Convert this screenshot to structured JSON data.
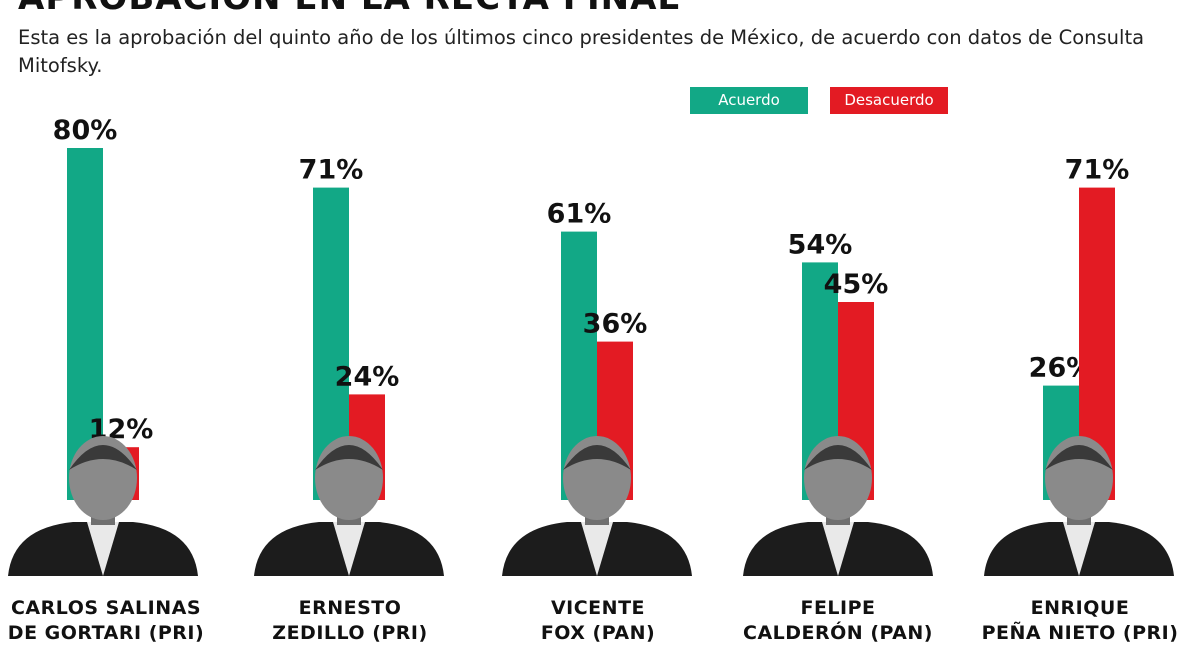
{
  "header": {
    "title": "APROBACIÓN EN LA RECTA FINAL",
    "subtitle": "Esta es la aprobación del quinto año de los últimos cinco presidentes de México, de acuerdo con datos de Consulta Mitofsky."
  },
  "legend": {
    "acuerdo": "Acuerdo",
    "desacuerdo": "Desacuerdo"
  },
  "colors": {
    "acuerdo": "#12a886",
    "desacuerdo": "#e31b23"
  },
  "chart_data": {
    "type": "bar",
    "categories": [
      "CARLOS SALINAS DE GORTARI (PRI)",
      "ERNESTO ZEDILLO (PRI)",
      "VICENTE FOX (PAN)",
      "FELIPE CALDERÓN (PAN)",
      "ENRIQUE PEÑA NIETO (PRI)"
    ],
    "series": [
      {
        "name": "Acuerdo",
        "values": [
          80,
          71,
          61,
          54,
          26
        ],
        "labels": [
          "80%",
          "71%",
          "61%",
          "54%",
          "26%"
        ]
      },
      {
        "name": "Desacuerdo",
        "values": [
          12,
          24,
          36,
          45,
          71
        ],
        "labels": [
          "12%",
          "24%",
          "36%",
          "45%",
          "71%"
        ]
      }
    ],
    "title": "APROBACIÓN EN LA RECTA FINAL",
    "xlabel": "",
    "ylabel": "",
    "ylim": [
      0,
      100
    ],
    "grid": false,
    "legend_position": "top-right"
  },
  "presidents": [
    {
      "name_line1": "CARLOS SALINAS",
      "name_line2": "DE GORTARI (PRI)"
    },
    {
      "name_line1": "ERNESTO",
      "name_line2": "ZEDILLO (PRI)"
    },
    {
      "name_line1": "VICENTE",
      "name_line2": "FOX (PAN)"
    },
    {
      "name_line1": "FELIPE",
      "name_line2": "CALDERÓN (PAN)"
    },
    {
      "name_line1": "ENRIQUE",
      "name_line2": "PEÑA NIETO (PRI)"
    }
  ]
}
